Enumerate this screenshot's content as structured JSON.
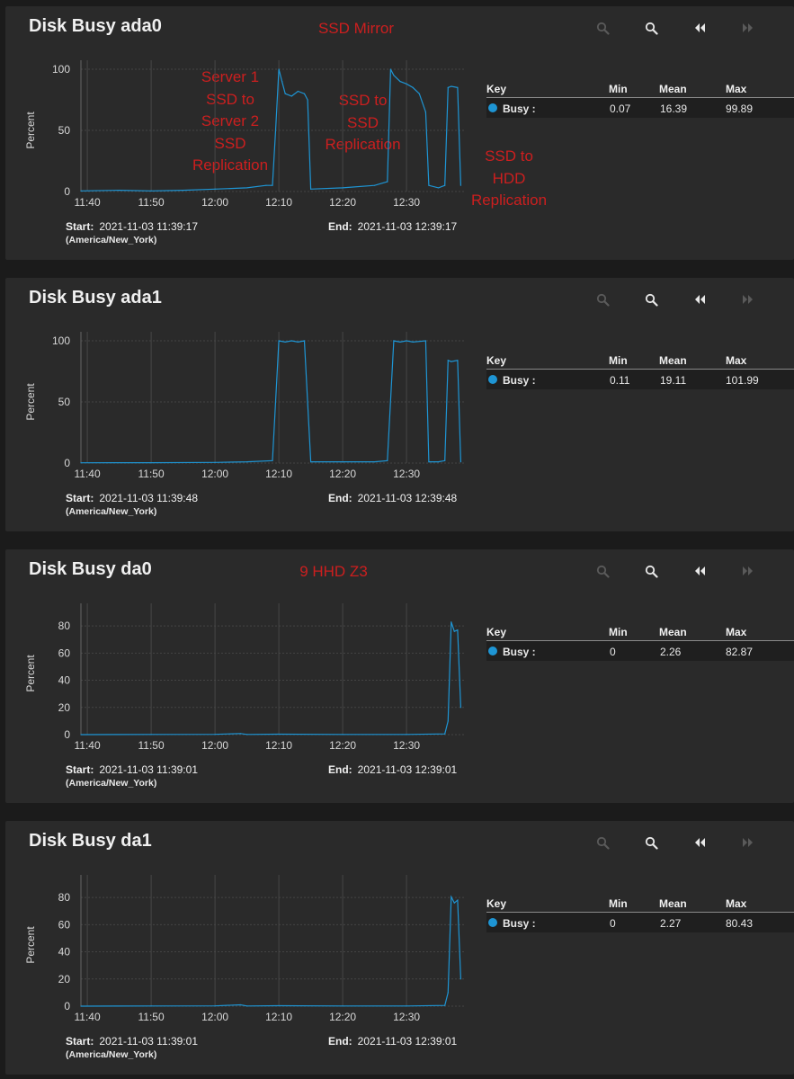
{
  "panels": [
    {
      "title": "Disk Busy ada0",
      "ylabel": "Percent",
      "ymax": 100,
      "yticks": [
        0,
        50,
        100
      ],
      "xticks": [
        "11:40",
        "11:50",
        "12:00",
        "12:10",
        "12:20",
        "12:30"
      ],
      "legend": {
        "key": "Key",
        "min_h": "Min",
        "mean_h": "Mean",
        "max_h": "Max",
        "series": "Busy :",
        "min": "0.07",
        "mean": "16.39",
        "max": "99.89"
      },
      "start_label": "Start:",
      "start": "2021-11-03 11:39:17",
      "tz": "(America/New_York)",
      "end_label": "End:",
      "end": "2021-11-03 12:39:17",
      "annotations": [
        {
          "lines": [
            "SSD Mirror"
          ]
        },
        {
          "lines": [
            "Server 1",
            "SSD to",
            "Server 2",
            "SSD",
            "Replication"
          ]
        },
        {
          "lines": [
            "SSD to",
            "SSD",
            "Replication"
          ]
        },
        {
          "lines": [
            "SSD to",
            "HDD",
            "Replication"
          ]
        }
      ]
    },
    {
      "title": "Disk Busy ada1",
      "ylabel": "Percent",
      "ymax": 100,
      "yticks": [
        0,
        50,
        100
      ],
      "xticks": [
        "11:40",
        "11:50",
        "12:00",
        "12:10",
        "12:20",
        "12:30"
      ],
      "legend": {
        "key": "Key",
        "min_h": "Min",
        "mean_h": "Mean",
        "max_h": "Max",
        "series": "Busy :",
        "min": "0.11",
        "mean": "19.11",
        "max": "101.99"
      },
      "start_label": "Start:",
      "start": "2021-11-03 11:39:48",
      "tz": "(America/New_York)",
      "end_label": "End:",
      "end": "2021-11-03 12:39:48",
      "annotations": []
    },
    {
      "title": "Disk Busy da0",
      "ylabel": "Percent",
      "ymax": 90,
      "yticks": [
        0,
        20,
        40,
        60,
        80
      ],
      "xticks": [
        "11:40",
        "11:50",
        "12:00",
        "12:10",
        "12:20",
        "12:30"
      ],
      "legend": {
        "key": "Key",
        "min_h": "Min",
        "mean_h": "Mean",
        "max_h": "Max",
        "series": "Busy :",
        "min": "0",
        "mean": "2.26",
        "max": "82.87"
      },
      "start_label": "Start:",
      "start": "2021-11-03 11:39:01",
      "tz": "(America/New_York)",
      "end_label": "End:",
      "end": "2021-11-03 12:39:01",
      "annotations": [
        {
          "lines": [
            "9 HHD Z3"
          ]
        }
      ]
    },
    {
      "title": "Disk Busy da1",
      "ylabel": "Percent",
      "ymax": 90,
      "yticks": [
        0,
        20,
        40,
        60,
        80
      ],
      "xticks": [
        "11:40",
        "11:50",
        "12:00",
        "12:10",
        "12:20",
        "12:30"
      ],
      "legend": {
        "key": "Key",
        "min_h": "Min",
        "mean_h": "Mean",
        "max_h": "Max",
        "series": "Busy :",
        "min": "0",
        "mean": "2.27",
        "max": "80.43"
      },
      "start_label": "Start:",
      "start": "2021-11-03 11:39:01",
      "tz": "(America/New_York)",
      "end_label": "End:",
      "end": "2021-11-03 12:39:01",
      "annotations": []
    }
  ],
  "colors": {
    "series": "#1e95d4",
    "annotation": "#cc1f1f",
    "card": "#2a2a2a",
    "page": "#1b1b1b"
  },
  "toolbar_icons": [
    "zoom-out-icon",
    "zoom-in-icon",
    "step-back-icon",
    "step-forward-icon"
  ],
  "chart_data": [
    {
      "type": "line",
      "title": "Disk Busy ada0",
      "ylabel": "Percent",
      "ylim": [
        0,
        100
      ],
      "series": [
        {
          "name": "Busy",
          "points": [
            [
              "11:39",
              0.5
            ],
            [
              "11:45",
              1
            ],
            [
              "11:50",
              0.5
            ],
            [
              "11:55",
              1
            ],
            [
              "12:00",
              2
            ],
            [
              "12:05",
              3
            ],
            [
              "12:08",
              5
            ],
            [
              "12:09",
              5
            ],
            [
              "12:09.5",
              50
            ],
            [
              "12:10",
              100
            ],
            [
              "12:10.5",
              90
            ],
            [
              "12:11",
              80
            ],
            [
              "12:12",
              78
            ],
            [
              "12:13",
              82
            ],
            [
              "12:14",
              80
            ],
            [
              "12:14.5",
              75
            ],
            [
              "12:15",
              2
            ],
            [
              "12:20",
              3
            ],
            [
              "12:25",
              5
            ],
            [
              "12:27",
              8
            ],
            [
              "12:27.5",
              100
            ],
            [
              "12:28",
              95
            ],
            [
              "12:29",
              90
            ],
            [
              "12:30",
              88
            ],
            [
              "12:31",
              85
            ],
            [
              "12:32",
              80
            ],
            [
              "12:33",
              65
            ],
            [
              "12:33.5",
              5
            ],
            [
              "12:35",
              3
            ],
            [
              "12:36",
              5
            ],
            [
              "12:36.5",
              85
            ],
            [
              "12:37",
              86
            ],
            [
              "12:38",
              85
            ],
            [
              "12:38.5",
              5
            ]
          ]
        }
      ]
    },
    {
      "type": "line",
      "title": "Disk Busy ada1",
      "ylabel": "Percent",
      "ylim": [
        0,
        100
      ],
      "series": [
        {
          "name": "Busy",
          "points": [
            [
              "11:39",
              0.2
            ],
            [
              "11:50",
              0.3
            ],
            [
              "12:00",
              0.5
            ],
            [
              "12:05",
              1
            ],
            [
              "12:09",
              2
            ],
            [
              "12:10",
              100
            ],
            [
              "12:11",
              99
            ],
            [
              "12:12",
              100
            ],
            [
              "12:13",
              99
            ],
            [
              "12:14",
              100
            ],
            [
              "12:15",
              1
            ],
            [
              "12:20",
              1
            ],
            [
              "12:25",
              1
            ],
            [
              "12:27",
              2
            ],
            [
              "12:28",
              100
            ],
            [
              "12:29",
              99
            ],
            [
              "12:30",
              100
            ],
            [
              "12:31",
              99
            ],
            [
              "12:33",
              100
            ],
            [
              "12:33.5",
              1
            ],
            [
              "12:35",
              1
            ],
            [
              "12:36",
              2
            ],
            [
              "12:36.5",
              84
            ],
            [
              "12:37",
              83
            ],
            [
              "12:38",
              84
            ],
            [
              "12:38.5",
              1
            ]
          ]
        }
      ]
    },
    {
      "type": "line",
      "title": "Disk Busy da0",
      "ylabel": "Percent",
      "ylim": [
        0,
        90
      ],
      "series": [
        {
          "name": "Busy",
          "points": [
            [
              "11:39",
              0
            ],
            [
              "11:50",
              0.1
            ],
            [
              "12:00",
              0.2
            ],
            [
              "12:04",
              0.8
            ],
            [
              "12:05",
              0.1
            ],
            [
              "12:10",
              0.3
            ],
            [
              "12:20",
              0.1
            ],
            [
              "12:30",
              0.1
            ],
            [
              "12:36",
              0.5
            ],
            [
              "12:36.5",
              10
            ],
            [
              "12:37",
              82.87
            ],
            [
              "12:37.5",
              76
            ],
            [
              "12:38",
              77
            ],
            [
              "12:38.5",
              20
            ]
          ]
        }
      ]
    },
    {
      "type": "line",
      "title": "Disk Busy da1",
      "ylabel": "Percent",
      "ylim": [
        0,
        90
      ],
      "series": [
        {
          "name": "Busy",
          "points": [
            [
              "11:39",
              0
            ],
            [
              "11:50",
              0.1
            ],
            [
              "12:00",
              0.2
            ],
            [
              "12:04",
              1
            ],
            [
              "12:05",
              0.1
            ],
            [
              "12:10",
              0.3
            ],
            [
              "12:20",
              0.1
            ],
            [
              "12:30",
              0.1
            ],
            [
              "12:36",
              0.5
            ],
            [
              "12:36.5",
              10
            ],
            [
              "12:37",
              80.43
            ],
            [
              "12:37.5",
              76
            ],
            [
              "12:38",
              78
            ],
            [
              "12:38.5",
              20
            ]
          ]
        }
      ]
    }
  ]
}
